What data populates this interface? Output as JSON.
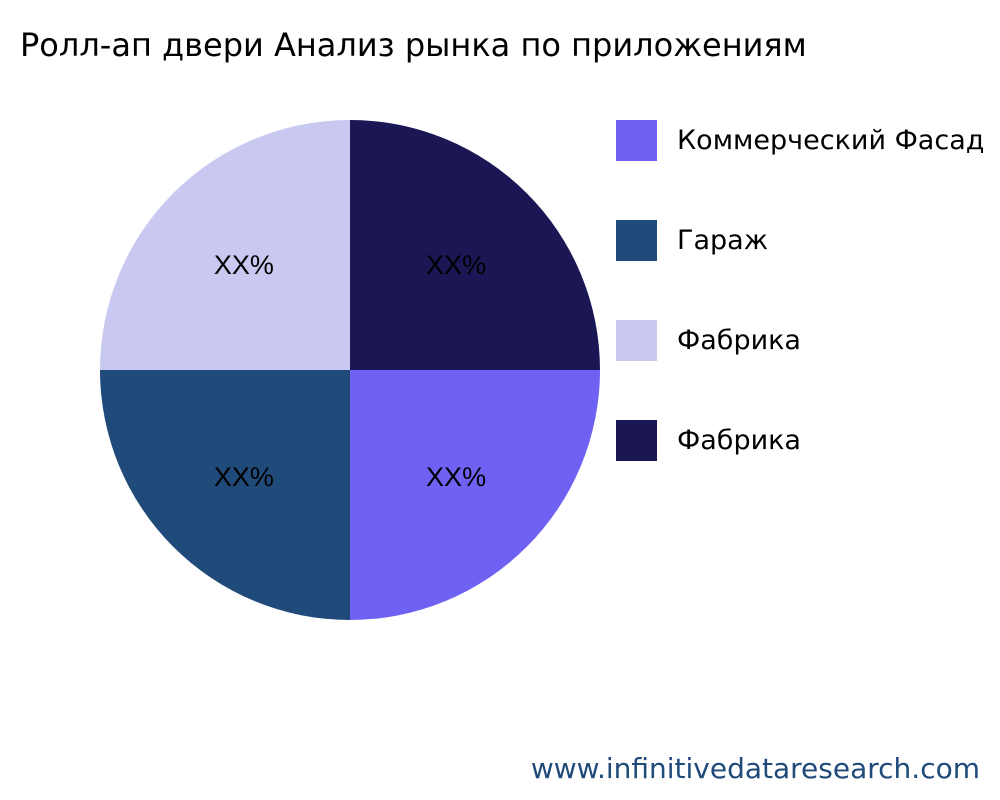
{
  "chart_data": {
    "type": "pie",
    "title": "Ролл-ап двери Анализ рынка по приложениям",
    "slices": [
      {
        "label": "Коммерческий Фасад",
        "value": 25,
        "data_label": "XX%",
        "color": "#6f61f2"
      },
      {
        "label": "Гараж",
        "value": 25,
        "data_label": "XX%",
        "color": "#1f4a7a"
      },
      {
        "label": "Фабрика",
        "value": 25,
        "data_label": "XX%",
        "color": "#c8c8f0"
      },
      {
        "label": "Фабрика",
        "value": 25,
        "data_label": "XX%",
        "color": "#1b1654"
      }
    ],
    "legend_position": "right"
  },
  "watermark": "www.infinitivedataresearch.com"
}
